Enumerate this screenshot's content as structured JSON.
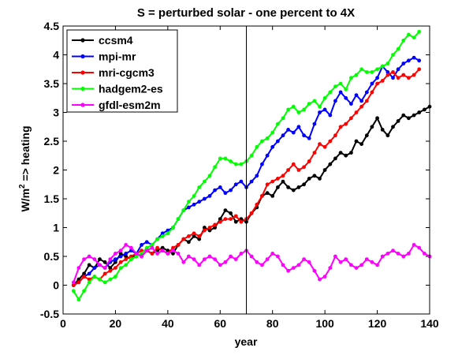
{
  "chart_data": {
    "type": "line",
    "title": "S = perturbed solar - one percent to 4X",
    "xlabel": "year",
    "ylabel_main": "W/m",
    "ylabel_sup": "2",
    "ylabel_rest": " => heating",
    "xlim": [
      0,
      140
    ],
    "ylim": [
      -0.5,
      4.5
    ],
    "xticks": [
      0,
      20,
      40,
      60,
      80,
      100,
      120,
      140
    ],
    "yticks": [
      -0.5,
      0,
      0.5,
      1,
      1.5,
      2,
      2.5,
      3,
      3.5,
      4,
      4.5
    ],
    "xtick_labels": [
      "0",
      "20",
      "40",
      "60",
      "80",
      "100",
      "120",
      "140"
    ],
    "ytick_labels": [
      "-0.5",
      "0",
      "0.5",
      "1",
      "1.5",
      "2",
      "2.5",
      "3",
      "3.5",
      "4",
      "4.5"
    ],
    "vline_x": 70,
    "grid": false,
    "legend_position": "top-left",
    "series": [
      {
        "name": "ccsm4",
        "color": "#000000",
        "x": [
          4,
          6,
          8,
          10,
          12,
          14,
          16,
          18,
          20,
          22,
          24,
          26,
          28,
          30,
          32,
          34,
          36,
          38,
          40,
          42,
          44,
          46,
          48,
          50,
          52,
          54,
          56,
          58,
          60,
          62,
          64,
          66,
          68,
          70,
          72,
          74,
          76,
          78,
          80,
          82,
          84,
          86,
          88,
          90,
          92,
          94,
          96,
          98,
          100,
          102,
          104,
          106,
          108,
          110,
          112,
          114,
          116,
          118,
          120,
          122,
          124,
          126,
          128,
          130,
          132,
          134,
          136,
          138,
          140
        ],
        "y": [
          0.0,
          0.1,
          0.2,
          0.35,
          0.3,
          0.45,
          0.4,
          0.3,
          0.4,
          0.55,
          0.5,
          0.45,
          0.55,
          0.5,
          0.6,
          0.55,
          0.6,
          0.65,
          0.6,
          0.55,
          0.7,
          0.8,
          0.75,
          0.85,
          0.8,
          1.0,
          0.95,
          1.0,
          1.15,
          1.3,
          1.25,
          1.1,
          1.15,
          1.1,
          1.25,
          1.35,
          1.55,
          1.6,
          1.55,
          1.7,
          1.8,
          1.7,
          1.65,
          1.7,
          1.75,
          1.85,
          1.9,
          1.85,
          2.0,
          2.1,
          2.2,
          2.3,
          2.25,
          2.3,
          2.5,
          2.45,
          2.6,
          2.75,
          2.9,
          2.7,
          2.6,
          2.75,
          2.85,
          2.95,
          2.9,
          2.95,
          3.0,
          3.05,
          3.1
        ]
      },
      {
        "name": "mpi-mr",
        "color": "#0000ff",
        "x": [
          4,
          6,
          8,
          10,
          12,
          14,
          16,
          18,
          20,
          22,
          24,
          26,
          28,
          30,
          32,
          34,
          36,
          38,
          40,
          42,
          44,
          46,
          48,
          50,
          52,
          54,
          56,
          58,
          60,
          62,
          64,
          66,
          68,
          70,
          72,
          74,
          76,
          78,
          80,
          82,
          84,
          86,
          88,
          90,
          92,
          94,
          96,
          98,
          100,
          102,
          104,
          106,
          108,
          110,
          112,
          114,
          116,
          118,
          120,
          122,
          124,
          126,
          128,
          130,
          132,
          134,
          136
        ],
        "y": [
          0.0,
          0.05,
          0.15,
          0.2,
          0.3,
          0.35,
          0.3,
          0.4,
          0.45,
          0.5,
          0.55,
          0.6,
          0.55,
          0.7,
          0.75,
          0.7,
          0.8,
          0.9,
          0.95,
          1.0,
          1.15,
          1.3,
          1.35,
          1.4,
          1.45,
          1.5,
          1.55,
          1.65,
          1.7,
          1.6,
          1.65,
          1.75,
          1.8,
          1.7,
          1.8,
          1.9,
          2.1,
          2.25,
          2.4,
          2.5,
          2.6,
          2.7,
          2.65,
          2.75,
          2.6,
          2.55,
          2.8,
          3.0,
          3.05,
          2.95,
          3.2,
          3.35,
          3.25,
          3.15,
          3.3,
          3.2,
          3.35,
          3.5,
          3.6,
          3.8,
          3.7,
          3.6,
          3.75,
          3.85,
          3.9,
          3.95,
          3.9
        ]
      },
      {
        "name": "mri-cgcm3",
        "color": "#ff0000",
        "x": [
          4,
          6,
          8,
          10,
          12,
          14,
          16,
          18,
          20,
          22,
          24,
          26,
          28,
          30,
          32,
          34,
          36,
          38,
          40,
          42,
          44,
          46,
          48,
          50,
          52,
          54,
          56,
          58,
          60,
          62,
          64,
          66,
          68,
          70,
          72,
          74,
          76,
          78,
          80,
          82,
          84,
          86,
          88,
          90,
          92,
          94,
          96,
          98,
          100,
          102,
          104,
          106,
          108,
          110,
          112,
          114,
          116,
          118,
          120,
          122,
          124,
          126,
          128,
          130,
          132,
          134,
          136
        ],
        "y": [
          0.0,
          0.05,
          0.15,
          0.1,
          0.15,
          0.1,
          0.2,
          0.25,
          0.3,
          0.4,
          0.45,
          0.5,
          0.55,
          0.6,
          0.6,
          0.55,
          0.65,
          0.6,
          0.55,
          0.65,
          0.7,
          0.8,
          0.85,
          0.9,
          0.85,
          0.95,
          1.0,
          1.05,
          1.1,
          1.15,
          1.15,
          1.2,
          1.1,
          1.15,
          1.25,
          1.4,
          1.55,
          1.75,
          1.8,
          1.85,
          1.9,
          2.0,
          2.1,
          2.0,
          2.05,
          2.15,
          2.3,
          2.45,
          2.4,
          2.5,
          2.6,
          2.75,
          2.8,
          2.9,
          3.0,
          3.1,
          3.2,
          3.35,
          3.5,
          3.55,
          3.65,
          3.7,
          3.6,
          3.65,
          3.6,
          3.65,
          3.75
        ]
      },
      {
        "name": "hadgem2-es",
        "color": "#00ff00",
        "x": [
          4,
          6,
          8,
          10,
          12,
          14,
          16,
          18,
          20,
          22,
          24,
          26,
          28,
          30,
          32,
          34,
          36,
          38,
          40,
          42,
          44,
          46,
          48,
          50,
          52,
          54,
          56,
          58,
          60,
          62,
          64,
          66,
          68,
          70,
          72,
          74,
          76,
          78,
          80,
          82,
          84,
          86,
          88,
          90,
          92,
          94,
          96,
          98,
          100,
          102,
          104,
          106,
          108,
          110,
          112,
          114,
          116,
          118,
          120,
          122,
          124,
          126,
          128,
          130,
          132,
          134,
          136
        ],
        "y": [
          -0.1,
          -0.25,
          -0.1,
          0.05,
          0.15,
          0.1,
          0.05,
          0.1,
          0.15,
          0.3,
          0.35,
          0.45,
          0.5,
          0.55,
          0.65,
          0.7,
          0.8,
          0.85,
          0.9,
          1.0,
          1.15,
          1.3,
          1.45,
          1.55,
          1.7,
          1.8,
          1.9,
          2.05,
          2.2,
          2.2,
          2.15,
          2.1,
          2.1,
          2.15,
          2.25,
          2.4,
          2.5,
          2.55,
          2.65,
          2.8,
          2.9,
          3.05,
          3.1,
          3.0,
          3.05,
          3.15,
          3.2,
          3.1,
          3.25,
          3.35,
          3.45,
          3.5,
          3.4,
          3.6,
          3.65,
          3.75,
          3.7,
          3.7,
          3.75,
          3.8,
          3.85,
          4.0,
          4.1,
          4.25,
          4.35,
          4.3,
          4.4
        ]
      },
      {
        "name": "gfdl-esm2m",
        "color": "#ff00ff",
        "x": [
          4,
          6,
          8,
          10,
          12,
          14,
          16,
          18,
          20,
          22,
          24,
          26,
          28,
          30,
          32,
          34,
          36,
          38,
          40,
          42,
          44,
          46,
          48,
          50,
          52,
          54,
          56,
          58,
          60,
          62,
          64,
          66,
          68,
          70,
          72,
          74,
          76,
          78,
          80,
          82,
          84,
          86,
          88,
          90,
          92,
          94,
          96,
          98,
          100,
          102,
          104,
          106,
          108,
          110,
          112,
          114,
          116,
          118,
          120,
          122,
          124,
          126,
          128,
          130,
          132,
          134,
          136,
          138,
          140
        ],
        "y": [
          0.05,
          0.3,
          0.45,
          0.5,
          0.45,
          0.35,
          0.3,
          0.45,
          0.55,
          0.6,
          0.7,
          0.65,
          0.55,
          0.5,
          0.6,
          0.65,
          0.55,
          0.6,
          0.55,
          0.6,
          0.55,
          0.4,
          0.5,
          0.45,
          0.35,
          0.45,
          0.5,
          0.45,
          0.35,
          0.4,
          0.5,
          0.45,
          0.55,
          0.6,
          0.5,
          0.4,
          0.35,
          0.45,
          0.55,
          0.5,
          0.35,
          0.25,
          0.3,
          0.35,
          0.45,
          0.4,
          0.25,
          0.1,
          0.15,
          0.3,
          0.5,
          0.4,
          0.45,
          0.35,
          0.3,
          0.35,
          0.45,
          0.4,
          0.35,
          0.5,
          0.55,
          0.6,
          0.55,
          0.5,
          0.55,
          0.7,
          0.65,
          0.55,
          0.5
        ]
      }
    ]
  }
}
